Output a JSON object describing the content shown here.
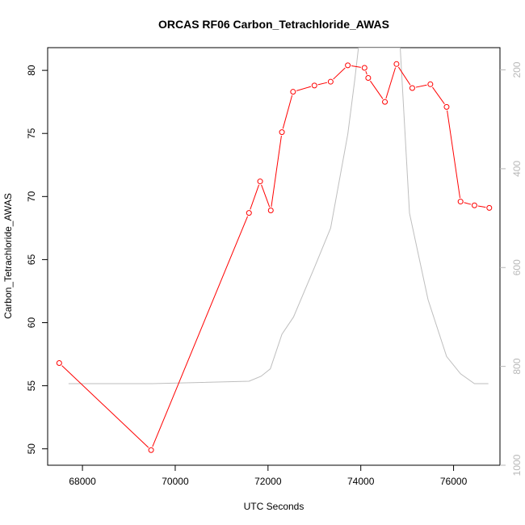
{
  "chart_data": {
    "type": "line",
    "title": "ORCAS RF06 Carbon_Tetrachloride_AWAS",
    "xlabel": "UTC Seconds",
    "ylabel": "Carbon_Tetrachloride_AWAS",
    "xlim": [
      67250,
      77000
    ],
    "ylim": [
      48.7,
      81.8
    ],
    "y2lim": [
      1000,
      155
    ],
    "x_ticks": [
      "68000",
      "70000",
      "72000",
      "74000",
      "76000"
    ],
    "y_ticks": [
      "50",
      "55",
      "60",
      "65",
      "70",
      "75",
      "80"
    ],
    "y2_ticks": [
      "200",
      "400",
      "600",
      "800",
      "1000"
    ],
    "y2_reversed": true,
    "grid": false,
    "series": [
      {
        "color": "#ff0000",
        "axis": "left",
        "marker": "open-circle",
        "x": [
          67500,
          69480,
          71590,
          71830,
          72060,
          72300,
          72540,
          73000,
          73350,
          73720,
          74080,
          74160,
          74520,
          74770,
          75110,
          75500,
          75850,
          76150,
          76450,
          76770
        ],
        "y": [
          56.8,
          49.9,
          68.7,
          71.2,
          68.9,
          75.1,
          78.3,
          78.8,
          79.1,
          80.4,
          80.2,
          79.4,
          77.5,
          80.5,
          78.6,
          78.9,
          77.1,
          69.6,
          69.3,
          69.1
        ]
      },
      {
        "color": "#bebebe",
        "axis": "right",
        "marker": "none",
        "x": [
          67700,
          69500,
          71590,
          71850,
          72050,
          72300,
          72550,
          73000,
          73350,
          73720,
          73870,
          73950,
          74050,
          74350,
          74650,
          74850,
          75050,
          75450,
          75850,
          76150,
          76450,
          76750
        ],
        "y": [
          835,
          835,
          830,
          820,
          805,
          735,
          700,
          600,
          520,
          330,
          220,
          155,
          155,
          155,
          155,
          155,
          490,
          665,
          780,
          815,
          835,
          835
        ]
      }
    ]
  }
}
